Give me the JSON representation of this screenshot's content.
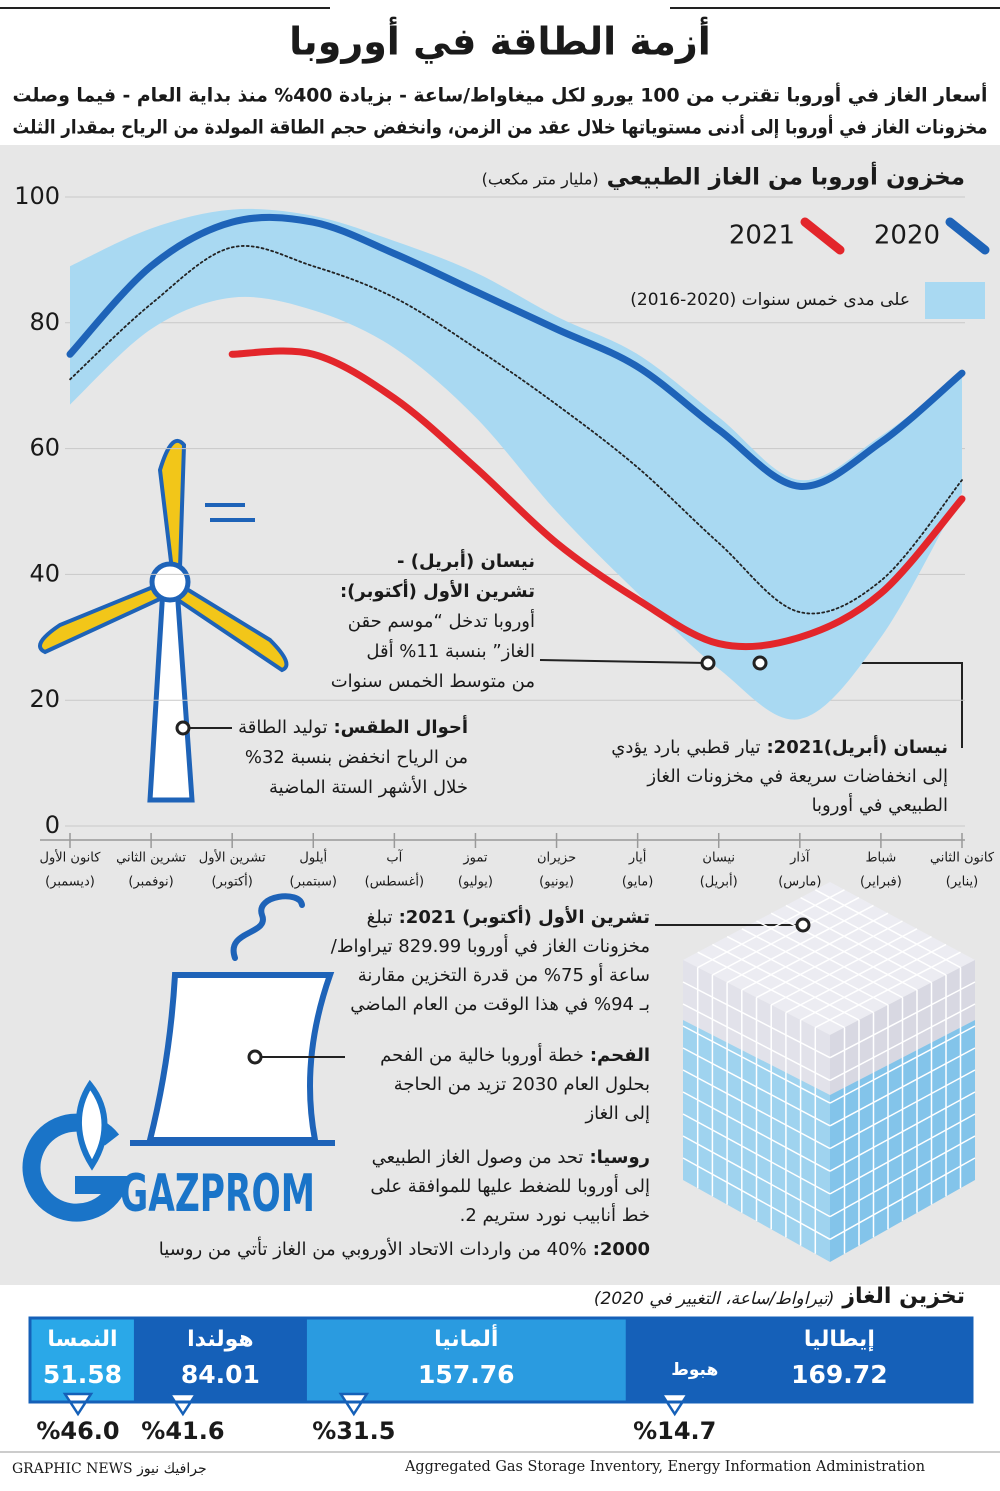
{
  "header": {
    "title": "أزمة الطاقة في أوروبا",
    "subtitle": [
      "أسعار الغاز في أوروبا تقترب من 100 يورو لكل ميغاواط/ساعة - بزيادة 400% منذ بداية العام - فيما وصلت",
      "مخزونات الغاز في أوروبا إلى أدنى مستوياتها خلال عقد من الزمن، وانخفض حجم الطاقة المولدة من الرياح بمقدار الثلث"
    ]
  },
  "chart_data": [
    {
      "type": "line",
      "title": "مخزون أوروبا من الغاز الطبيعي",
      "unit": "(مليار متر مكعب)",
      "categories": [
        "كانون الثاني",
        "شباط",
        "آذار",
        "نيسان",
        "أيار",
        "حزيران",
        "تموز",
        "آب",
        "أيلول",
        "تشرين الأول",
        "تشرين الثاني",
        "كانون الأول"
      ],
      "category_subtitles": [
        "(يناير)",
        "(فبراير)",
        "(مارس)",
        "(أبريل)",
        "(مايو)",
        "(يونيو)",
        "(يوليو)",
        "(أغسطس)",
        "(سبتمبر)",
        "(أكتوبر)",
        "(نوفمبر)",
        "(ديسمبر)"
      ],
      "x_reversed": true,
      "series": [
        {
          "name": "2020",
          "color": "#1e63b8",
          "values": [
            72,
            61,
            54,
            63,
            73,
            79,
            85,
            91,
            96,
            96,
            89,
            75
          ]
        },
        {
          "name": "2021",
          "color": "#e3262b",
          "values": [
            52,
            37,
            30,
            29,
            36,
            45,
            57,
            68,
            75,
            75,
            null,
            null
          ]
        },
        {
          "color": "#222222",
          "style": "dotted",
          "values": [
            55,
            39,
            34,
            45,
            57,
            67,
            76,
            84,
            89,
            92,
            83,
            71
          ]
        }
      ],
      "range": {
        "name": "على مدى خمس سنوات (2020-2016)",
        "color": "#a9d9f2",
        "lower": [
          53,
          30,
          17,
          25,
          37,
          50,
          65,
          76,
          82,
          84,
          79,
          67
        ],
        "upper": [
          72,
          62,
          55,
          65,
          75,
          81,
          88,
          93,
          97,
          98,
          95,
          89
        ]
      },
      "ylim": [
        0,
        100
      ],
      "yticks": [
        0,
        20,
        40,
        60,
        80,
        100
      ],
      "grid": true
    },
    {
      "type": "bar",
      "title": "تخزين الغاز",
      "subtitle": "(تيراواط/ساعة، التغيير في 2020)",
      "categories": [
        "إيطاليا",
        "ألمانيا",
        "هولندا",
        "النمسا"
      ],
      "values": [
        169.72,
        157.76,
        84.01,
        51.58
      ],
      "colors": [
        "#1560b8",
        "#2a9be0",
        "#1560b8",
        "#2aa8e8"
      ],
      "changes": [
        14.7,
        31.5,
        41.6,
        46
      ],
      "change_labels": [
        "%14.7",
        "%31.5",
        "%41.6",
        "%46.0"
      ],
      "change_note": "هبوط"
    }
  ],
  "annotations": [
    {
      "heading": [
        "نيسان (أبريل) -",
        "تشرين الأول (أكتوبر):"
      ],
      "lines": [
        "أوروبا تدخل “موسم حقن",
        "الغاز” بنسبة 11% أقل",
        "من متوسط الخمس سنوات"
      ]
    },
    {
      "label": "أحوال الطقس:",
      "lines": [
        "توليد الطاقة",
        "من الرياح انخفض بنسبة 32%",
        "خلال الأشهر الستة الماضية"
      ]
    },
    {
      "label": "نيسان (أبريل)2021:",
      "lines": [
        "تيار قطبي بارد يؤدي",
        "إلى انخفاضات سريعة في مخزونات الغاز",
        "الطبيعي في أوروبا"
      ]
    },
    {
      "label": "تشرين الأول (أكتوبر) 2021:",
      "lines": [
        "تبلغ",
        "مخزونات الغاز في أوروبا 829.99 تيراواط/",
        "ساعة أو 75% من قدرة التخزين مقارنة",
        "بـ 94% في هذا الوقت من العام الماضي"
      ]
    },
    {
      "label": "الفحم:",
      "lines": [
        "خطة أوروبا خالية من الفحم",
        "بحلول العام 2030 تزيد من الحاجة",
        "إلى الغاز"
      ]
    },
    {
      "label": "روسيا:",
      "lines": [
        "تحد من وصول الغاز الطبيعي",
        "إلى أوروبا للضغط عليها للموافقة على",
        "خط أنابيب نورد ستريم 2."
      ]
    },
    {
      "label": "2000:",
      "lines": [
        "40% من واردات الاتحاد الأوروبي من الغاز تأتي من روسيا"
      ]
    }
  ],
  "logo": "GAZPROM",
  "footer": {
    "brand": "GRAPHIC NEWS جرافيك نيوز",
    "source": "Aggregated Gas Storage Inventory, Energy Information Administration"
  }
}
